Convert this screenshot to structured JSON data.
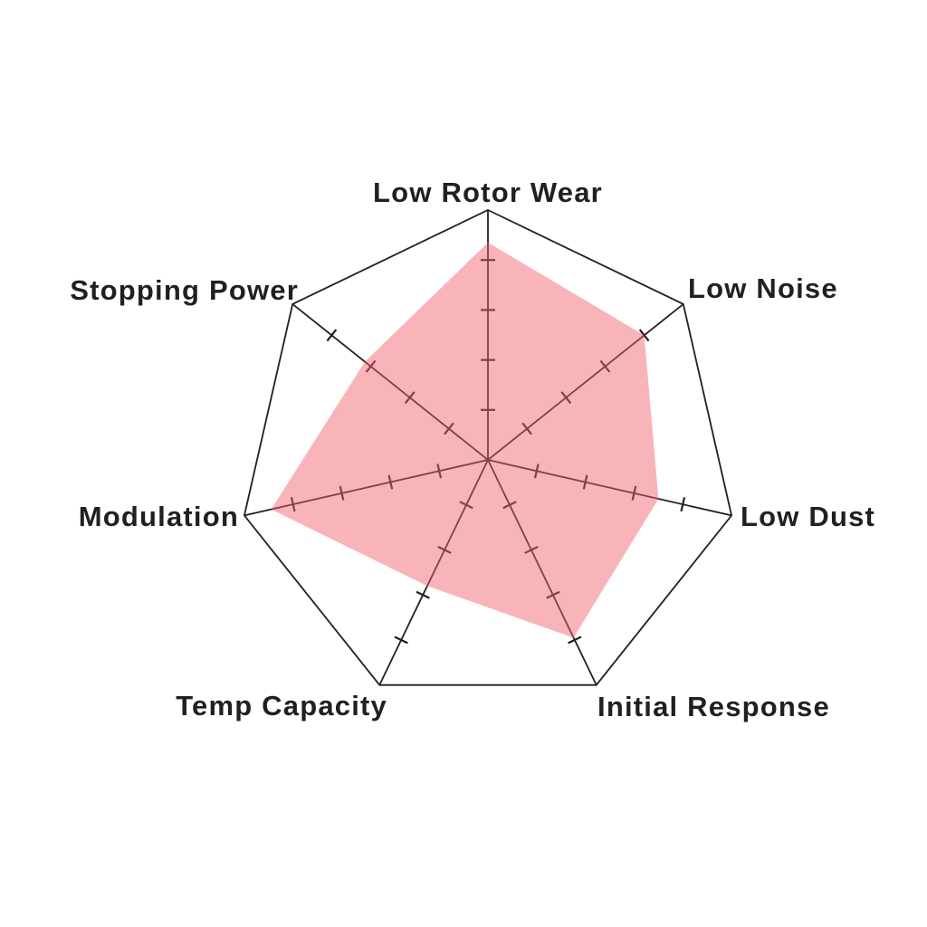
{
  "figure": {
    "title": "",
    "description_visible_text_only": true
  },
  "chart_data": {
    "type": "radar",
    "title": "",
    "max": 10,
    "min": 0,
    "tick_interval": 2,
    "grid_divisions": 5,
    "grid": "spokes-with-tick-marks",
    "legend": "none",
    "axes": [
      {
        "label": "Low Rotor Wear",
        "value": 8.7
      },
      {
        "label": "Low Noise",
        "value": 8.0
      },
      {
        "label": "Low Dust",
        "value": 7.0
      },
      {
        "label": "Initial Response",
        "value": 7.9
      },
      {
        "label": "Temp Capacity",
        "value": 5.6
      },
      {
        "label": "Modulation",
        "value": 8.9
      },
      {
        "label": "Stopping Power",
        "value": 6.3
      }
    ],
    "colors": {
      "fill": "#F0626D",
      "fill_opacity": 0.48,
      "line": "#231F20",
      "label_text": "#231F20",
      "background": "#FFFFFF"
    },
    "layout_hints": {
      "start_angle_deg": -90,
      "direction": "clockwise",
      "outer_ring": "heptagon-outline",
      "fill_drawn_over_grid": true
    }
  }
}
